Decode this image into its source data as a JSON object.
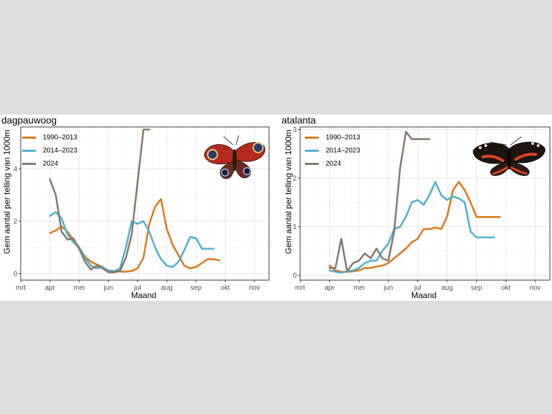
{
  "figure": {
    "ylabel": "Gem aantal per telling van 1000m",
    "xlabel": "Maand",
    "months": [
      "mrt",
      "apr",
      "mei",
      "jun",
      "jul",
      "aug",
      "sep",
      "okt",
      "nov"
    ],
    "legend": [
      {
        "label": "1990–2013",
        "color": "#d97a1a"
      },
      {
        "label": "2014–2023",
        "color": "#4bb0d0"
      },
      {
        "label": "2024",
        "color": "#85786c"
      }
    ]
  },
  "chart_data": [
    {
      "type": "line",
      "title": "dagpauwoog",
      "xlabel": "Maand",
      "ylabel": "Gem aantal per telling van 1000m",
      "xlim": [
        0,
        8.5
      ],
      "ylim": [
        -0.25,
        5.6
      ],
      "yticks": [
        0,
        2,
        4
      ],
      "x_note": "x in months since 1 March (0=mrt, 1=apr, ... 8=nov)",
      "series": [
        {
          "name": "1990–2013",
          "color": "#d97a1a",
          "x": [
            1.0,
            1.2,
            1.4,
            1.6,
            1.8,
            2.0,
            2.2,
            2.4,
            2.6,
            2.8,
            3.0,
            3.2,
            3.4,
            3.6,
            3.8,
            4.0,
            4.2,
            4.4,
            4.6,
            4.8,
            5.0,
            5.2,
            5.4,
            5.6,
            5.8,
            6.0,
            6.2,
            6.4,
            6.6,
            6.8
          ],
          "y": [
            1.55,
            1.65,
            1.8,
            1.6,
            1.3,
            1.0,
            0.65,
            0.45,
            0.35,
            0.25,
            0.12,
            0.1,
            0.08,
            0.07,
            0.1,
            0.2,
            0.6,
            1.9,
            2.55,
            2.85,
            1.7,
            1.1,
            0.7,
            0.3,
            0.2,
            0.25,
            0.4,
            0.55,
            0.55,
            0.5
          ]
        },
        {
          "name": "2014–2023",
          "color": "#4bb0d0",
          "x": [
            1.0,
            1.2,
            1.4,
            1.6,
            1.8,
            2.0,
            2.2,
            2.4,
            2.6,
            2.8,
            3.0,
            3.2,
            3.4,
            3.6,
            3.8,
            4.0,
            4.2,
            4.4,
            4.6,
            4.8,
            5.0,
            5.2,
            5.4,
            5.6,
            5.8,
            6.0,
            6.2,
            6.4,
            6.6
          ],
          "y": [
            2.2,
            2.35,
            2.1,
            1.5,
            1.2,
            1.0,
            0.6,
            0.3,
            0.2,
            0.25,
            0.1,
            0.08,
            0.2,
            1.0,
            2.0,
            1.9,
            2.0,
            1.6,
            1.0,
            0.55,
            0.3,
            0.25,
            0.45,
            0.9,
            1.4,
            1.35,
            0.95,
            0.95,
            0.95
          ]
        },
        {
          "name": "2024",
          "color": "#85786c",
          "x": [
            1.0,
            1.2,
            1.4,
            1.6,
            1.8,
            2.0,
            2.2,
            2.4,
            2.6,
            2.8,
            3.0,
            3.2,
            3.4,
            3.6,
            3.8,
            4.0,
            4.2,
            4.4
          ],
          "y": [
            3.6,
            3.0,
            1.6,
            1.3,
            1.35,
            0.95,
            0.45,
            0.15,
            0.3,
            0.2,
            0.05,
            0.05,
            0.1,
            0.6,
            1.5,
            3.5,
            5.5,
            5.5
          ]
        }
      ]
    },
    {
      "type": "line",
      "title": "atalanta",
      "xlabel": "Maand",
      "ylabel": "Gem aantal per telling van 1000m",
      "xlim": [
        0,
        8.5
      ],
      "ylim": [
        -0.1,
        3.05
      ],
      "yticks": [
        0,
        1,
        2,
        3
      ],
      "x_note": "x in months since 1 March (0=mrt, 1=apr, ... 8=nov)",
      "series": [
        {
          "name": "1990–2013",
          "color": "#d97a1a",
          "x": [
            1.0,
            1.2,
            1.4,
            1.6,
            1.8,
            2.0,
            2.2,
            2.4,
            2.6,
            2.8,
            3.0,
            3.2,
            3.4,
            3.6,
            3.8,
            4.0,
            4.2,
            4.4,
            4.6,
            4.8,
            5.0,
            5.2,
            5.4,
            5.6,
            5.8,
            6.0,
            6.2,
            6.4,
            6.6,
            6.8
          ],
          "y": [
            0.2,
            0.1,
            0.07,
            0.07,
            0.08,
            0.1,
            0.15,
            0.15,
            0.18,
            0.2,
            0.25,
            0.35,
            0.45,
            0.55,
            0.68,
            0.75,
            0.95,
            0.95,
            0.98,
            0.95,
            1.2,
            1.75,
            1.92,
            1.75,
            1.5,
            1.2,
            1.2,
            1.2,
            1.2,
            1.2
          ]
        },
        {
          "name": "2014–2023",
          "color": "#4bb0d0",
          "x": [
            1.0,
            1.2,
            1.4,
            1.6,
            1.8,
            2.0,
            2.2,
            2.4,
            2.6,
            2.8,
            3.0,
            3.2,
            3.4,
            3.6,
            3.8,
            4.0,
            4.2,
            4.4,
            4.6,
            4.8,
            5.0,
            5.2,
            5.4,
            5.6,
            5.8,
            6.0,
            6.2,
            6.4,
            6.6
          ],
          "y": [
            0.1,
            0.07,
            0.05,
            0.08,
            0.1,
            0.15,
            0.25,
            0.3,
            0.3,
            0.5,
            0.65,
            0.95,
            1.0,
            1.2,
            1.5,
            1.55,
            1.45,
            1.65,
            1.92,
            1.65,
            1.55,
            1.62,
            1.58,
            1.5,
            0.9,
            0.78,
            0.78,
            0.78,
            0.78
          ]
        },
        {
          "name": "2024",
          "color": "#85786c",
          "x": [
            1.0,
            1.2,
            1.4,
            1.6,
            1.8,
            2.0,
            2.2,
            2.4,
            2.6,
            2.8,
            3.0,
            3.2,
            3.4,
            3.6,
            3.8,
            4.0,
            4.2,
            4.4
          ],
          "y": [
            0.15,
            0.15,
            0.75,
            0.08,
            0.25,
            0.3,
            0.45,
            0.35,
            0.55,
            0.35,
            0.3,
            0.9,
            2.2,
            2.95,
            2.8,
            2.8,
            2.8,
            2.8
          ]
        }
      ]
    }
  ]
}
